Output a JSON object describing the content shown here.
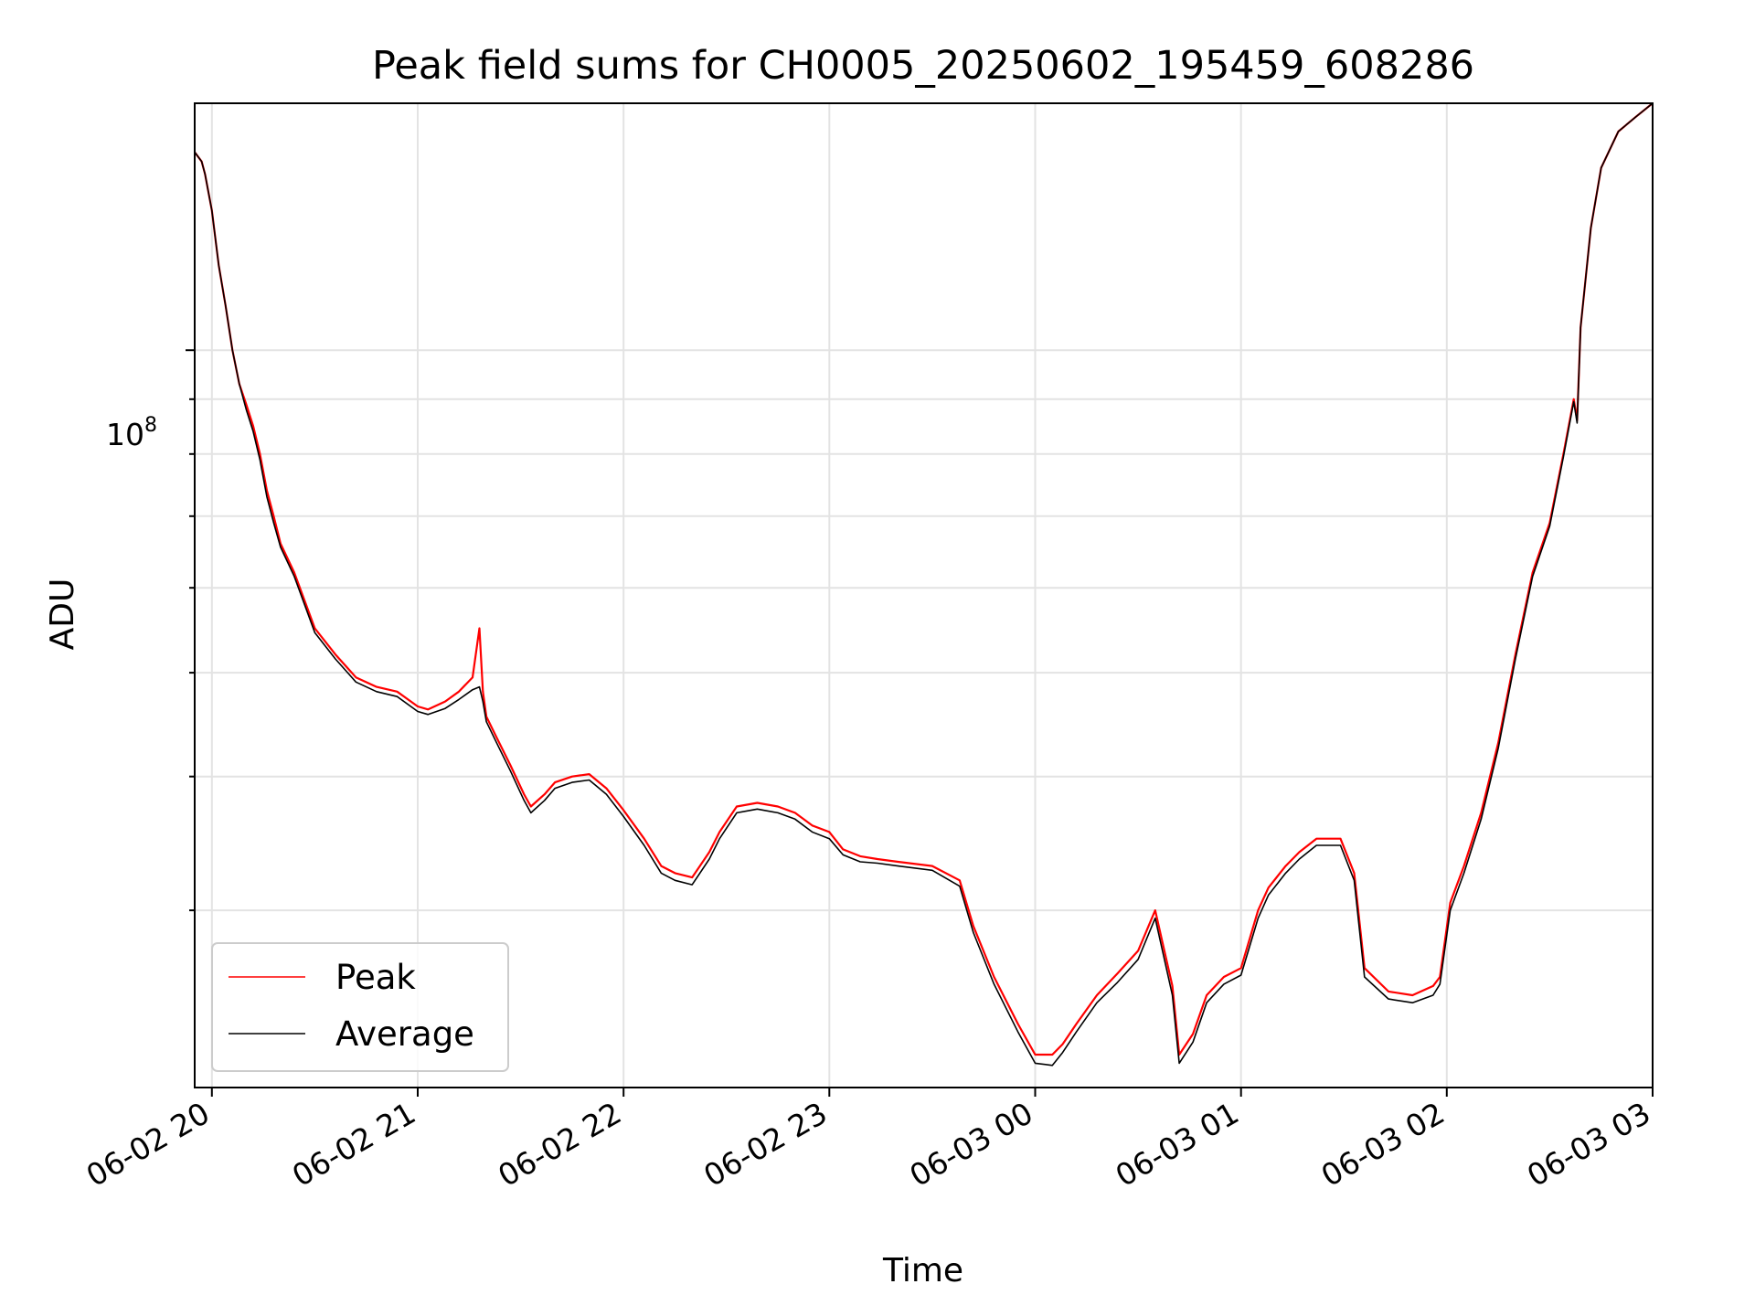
{
  "chart_data": {
    "type": "line",
    "title": "Peak field sums for CH0005_20250602_195459_608286",
    "xlabel": "Time",
    "ylabel": "ADU",
    "x_axis": "datetime",
    "xlim": [
      "2025-06-02 19:54:59",
      "2025-06-03 03:00:00"
    ],
    "x_ticks": [
      "2025-06-02 20:00",
      "2025-06-02 21:00",
      "2025-06-02 22:00",
      "2025-06-02 23:00",
      "2025-06-03 00:00",
      "2025-06-03 01:00",
      "2025-06-03 02:00",
      "2025-06-03 03:00"
    ],
    "x_tick_labels": [
      "06-02 20",
      "06-02 21",
      "06-02 22",
      "06-02 23",
      "06-03 00",
      "06-03 01",
      "06-03 02",
      "06-03 03"
    ],
    "y_scale": "log",
    "ylim": [
      20500000,
      170000000
    ],
    "y_major_ticks": [
      100000000
    ],
    "y_major_tick_label": "10",
    "y_major_tick_exponent": "8",
    "y_minor_ticks": [
      20000000,
      30000000,
      40000000,
      50000000,
      60000000,
      70000000,
      80000000,
      90000000,
      200000000
    ],
    "grid": true,
    "legend_position": "lower-left",
    "x": [
      "2025-06-02 19:55",
      "2025-06-02 19:57",
      "2025-06-02 19:58",
      "2025-06-02 20:00",
      "2025-06-02 20:02",
      "2025-06-02 20:04",
      "2025-06-02 20:06",
      "2025-06-02 20:08",
      "2025-06-02 20:10",
      "2025-06-02 20:12",
      "2025-06-02 20:14",
      "2025-06-02 20:16",
      "2025-06-02 20:18",
      "2025-06-02 20:20",
      "2025-06-02 20:24",
      "2025-06-02 20:30",
      "2025-06-02 20:36",
      "2025-06-02 20:42",
      "2025-06-02 20:48",
      "2025-06-02 20:54",
      "2025-06-02 21:00",
      "2025-06-02 21:03",
      "2025-06-02 21:08",
      "2025-06-02 21:12",
      "2025-06-02 21:16",
      "2025-06-02 21:18",
      "2025-06-02 21:19",
      "2025-06-02 21:20",
      "2025-06-02 21:23",
      "2025-06-02 21:27",
      "2025-06-02 21:31",
      "2025-06-02 21:33",
      "2025-06-02 21:37",
      "2025-06-02 21:40",
      "2025-06-02 21:45",
      "2025-06-02 21:50",
      "2025-06-02 21:55",
      "2025-06-02 22:00",
      "2025-06-02 22:06",
      "2025-06-02 22:11",
      "2025-06-02 22:15",
      "2025-06-02 22:20",
      "2025-06-02 22:25",
      "2025-06-02 22:28",
      "2025-06-02 22:33",
      "2025-06-02 22:39",
      "2025-06-02 22:45",
      "2025-06-02 22:50",
      "2025-06-02 22:55",
      "2025-06-02 23:00",
      "2025-06-02 23:04",
      "2025-06-02 23:09",
      "2025-06-02 23:14",
      "2025-06-02 23:20",
      "2025-06-02 23:30",
      "2025-06-02 23:38",
      "2025-06-02 23:42",
      "2025-06-02 23:48",
      "2025-06-02 23:55",
      "2025-06-03 00:00",
      "2025-06-03 00:05",
      "2025-06-03 00:08",
      "2025-06-03 00:12",
      "2025-06-03 00:18",
      "2025-06-03 00:24",
      "2025-06-03 00:30",
      "2025-06-03 00:35",
      "2025-06-03 00:40",
      "2025-06-03 00:42",
      "2025-06-03 00:46",
      "2025-06-03 00:50",
      "2025-06-03 00:55",
      "2025-06-03 01:00",
      "2025-06-03 01:05",
      "2025-06-03 01:08",
      "2025-06-03 01:13",
      "2025-06-03 01:17",
      "2025-06-03 01:22",
      "2025-06-03 01:29",
      "2025-06-03 01:33",
      "2025-06-03 01:36",
      "2025-06-03 01:43",
      "2025-06-03 01:50",
      "2025-06-03 01:56",
      "2025-06-03 01:58",
      "2025-06-03 02:01",
      "2025-06-03 02:05",
      "2025-06-03 02:10",
      "2025-06-03 02:15",
      "2025-06-03 02:20",
      "2025-06-03 02:25",
      "2025-06-03 02:30",
      "2025-06-03 02:34",
      "2025-06-03 02:37",
      "2025-06-03 02:38",
      "2025-06-03 02:39",
      "2025-06-03 02:42",
      "2025-06-03 02:45",
      "2025-06-03 02:50",
      "2025-06-03 02:55",
      "2025-06-03 03:00"
    ],
    "series": [
      {
        "name": "Peak",
        "color": "#ff0000",
        "values": [
          153000000,
          150000000,
          146000000,
          135000000,
          120000000,
          110000000,
          100000000,
          93000000,
          89000000,
          85000000,
          80000000,
          74000000,
          70000000,
          66000000,
          62000000,
          55000000,
          52000000,
          49500000,
          48500000,
          48000000,
          46500000,
          46200000,
          47000000,
          48000000,
          49500000,
          55000000,
          48000000,
          45500000,
          43500000,
          41000000,
          38500000,
          37500000,
          38500000,
          39500000,
          40000000,
          40200000,
          39000000,
          37200000,
          35000000,
          33000000,
          32500000,
          32200000,
          34000000,
          35500000,
          37500000,
          37800000,
          37500000,
          37000000,
          36000000,
          35500000,
          34200000,
          33700000,
          33500000,
          33300000,
          33000000,
          32000000,
          29000000,
          26000000,
          23500000,
          22000000,
          22000000,
          22500000,
          23500000,
          25000000,
          26200000,
          27500000,
          30000000,
          25500000,
          22000000,
          23000000,
          25000000,
          26000000,
          26500000,
          30000000,
          31500000,
          33000000,
          34000000,
          35000000,
          35000000,
          32500000,
          26500000,
          25200000,
          25000000,
          25500000,
          26000000,
          30500000,
          33000000,
          37000000,
          43000000,
          52000000,
          62000000,
          69000000,
          80000000,
          90000000,
          86000000,
          105000000,
          130000000,
          148000000,
          160000000,
          165000000,
          170000000
        ]
      },
      {
        "name": "Average",
        "color": "#000000",
        "values": [
          153000000,
          150000000,
          146000000,
          135000000,
          120000000,
          110000000,
          100000000,
          93000000,
          88000000,
          84000000,
          79000000,
          73000000,
          69000000,
          65500000,
          61500000,
          54500000,
          51500000,
          49000000,
          48000000,
          47500000,
          46000000,
          45700000,
          46300000,
          47200000,
          48200000,
          48500000,
          47000000,
          45000000,
          43000000,
          40500000,
          38000000,
          37000000,
          38000000,
          39000000,
          39500000,
          39700000,
          38500000,
          36700000,
          34500000,
          32500000,
          32000000,
          31700000,
          33500000,
          35000000,
          37000000,
          37300000,
          37000000,
          36500000,
          35500000,
          35000000,
          33800000,
          33300000,
          33200000,
          33000000,
          32700000,
          31600000,
          28600000,
          25600000,
          23100000,
          21600000,
          21500000,
          22100000,
          23100000,
          24600000,
          25700000,
          27000000,
          29500000,
          25000000,
          21600000,
          22600000,
          24600000,
          25600000,
          26100000,
          29500000,
          31000000,
          32500000,
          33500000,
          34500000,
          34500000,
          32000000,
          26000000,
          24800000,
          24600000,
          25000000,
          25600000,
          30000000,
          32500000,
          36500000,
          42500000,
          51500000,
          61500000,
          68500000,
          79500000,
          89500000,
          85500000,
          105000000,
          130000000,
          148000000,
          160000000,
          165000000,
          170000000
        ]
      }
    ]
  }
}
